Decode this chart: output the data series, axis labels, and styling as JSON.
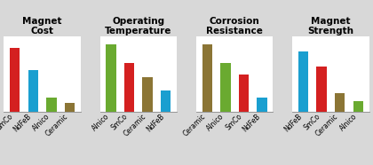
{
  "charts": [
    {
      "title": "Magnet\nCost",
      "bars": [
        {
          "label": "SmCo",
          "value": 95,
          "color": "#d42020"
        },
        {
          "label": "NdFeB",
          "value": 62,
          "color": "#1a9fd0"
        },
        {
          "label": "Alnico",
          "value": 22,
          "color": "#6aaa30"
        },
        {
          "label": "Ceramic",
          "value": 14,
          "color": "#8b7535"
        }
      ]
    },
    {
      "title": "Operating\nTemperature",
      "bars": [
        {
          "label": "Alnico",
          "value": 100,
          "color": "#6aaa30"
        },
        {
          "label": "SmCo",
          "value": 72,
          "color": "#d42020"
        },
        {
          "label": "Ceramic",
          "value": 52,
          "color": "#8b7535"
        },
        {
          "label": "NdFeB",
          "value": 32,
          "color": "#1a9fd0"
        }
      ]
    },
    {
      "title": "Corrosion\nResistance",
      "bars": [
        {
          "label": "Ceramic",
          "value": 100,
          "color": "#8b7535"
        },
        {
          "label": "Alnico",
          "value": 72,
          "color": "#6aaa30"
        },
        {
          "label": "SmCo",
          "value": 55,
          "color": "#d42020"
        },
        {
          "label": "NdFeB",
          "value": 22,
          "color": "#1a9fd0"
        }
      ]
    },
    {
      "title": "Magnet\nStrength",
      "bars": [
        {
          "label": "NdFeB",
          "value": 90,
          "color": "#1a9fd0"
        },
        {
          "label": "SmCo",
          "value": 68,
          "color": "#d42020"
        },
        {
          "label": "Ceramic",
          "value": 28,
          "color": "#8b7535"
        },
        {
          "label": "Alnico",
          "value": 16,
          "color": "#6aaa30"
        }
      ]
    }
  ],
  "background_color": "#d8d8d8",
  "plot_bg_color": "#ffffff",
  "title_fontsize": 7.5,
  "tick_fontsize": 5.5,
  "bar_width": 0.55
}
